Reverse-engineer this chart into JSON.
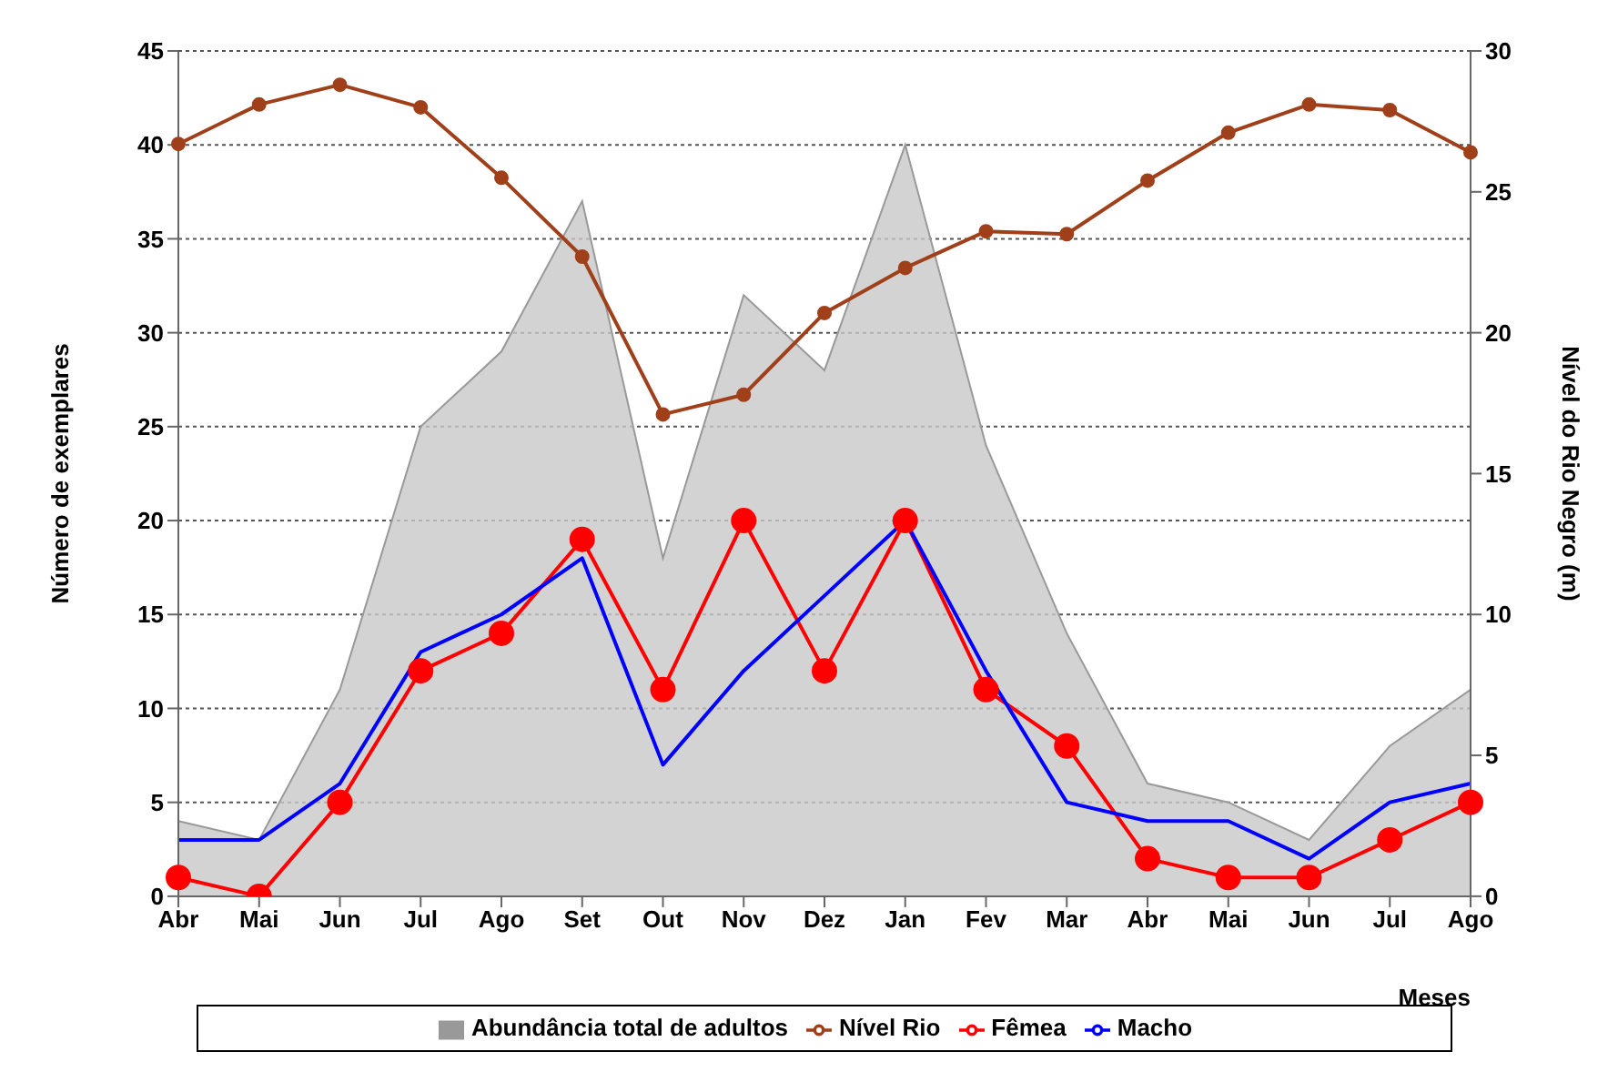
{
  "chart_data": {
    "type": "line",
    "xlabel": "Meses",
    "ylabel": "Número de exemplares",
    "y2label": "Nível do Rio Negro (m)",
    "categories": [
      "Abr",
      "Mai",
      "Jun",
      "Jul",
      "Ago",
      "Set",
      "Out",
      "Nov",
      "Dez",
      "Jan",
      "Fev",
      "Mar",
      "Abr",
      "Mai",
      "Jun",
      "Jul",
      "Ago"
    ],
    "series": [
      {
        "name": "Abundância total de adultos",
        "type": "area",
        "color": "#c8c8c8",
        "values": [
          4,
          3,
          11,
          25,
          29,
          37,
          18,
          32,
          28,
          40,
          24,
          14,
          6,
          5,
          3,
          8,
          11
        ]
      },
      {
        "name": "Nível Rio",
        "axis": "y2",
        "color": "#a0401a",
        "marker": "circle",
        "values": [
          26.7,
          28.1,
          28.8,
          28.0,
          25.5,
          22.7,
          17.1,
          17.8,
          20.7,
          22.3,
          23.6,
          23.5,
          25.4,
          27.1,
          28.1,
          27.9,
          26.4
        ]
      },
      {
        "name": "Fêmea",
        "color": "#ff0000",
        "marker": "circle",
        "values": [
          1,
          0,
          5,
          12,
          14,
          19,
          11,
          20,
          12,
          20,
          11,
          8,
          2,
          1,
          1,
          3,
          5
        ]
      },
      {
        "name": "Macho",
        "color": "#0000ff",
        "values": [
          3,
          3,
          6,
          13,
          15,
          18,
          7,
          12,
          16,
          20,
          12,
          5,
          4,
          4,
          2,
          5,
          6
        ]
      }
    ],
    "ylim": [
      0,
      45
    ],
    "yticks": [
      0,
      5,
      10,
      15,
      20,
      25,
      30,
      35,
      40,
      45
    ],
    "y2lim": [
      0,
      30
    ],
    "y2ticks": [
      0,
      5,
      10,
      15,
      20,
      25,
      30
    ],
    "grid": "y",
    "legend": "bottom",
    "line_style": "solid"
  }
}
